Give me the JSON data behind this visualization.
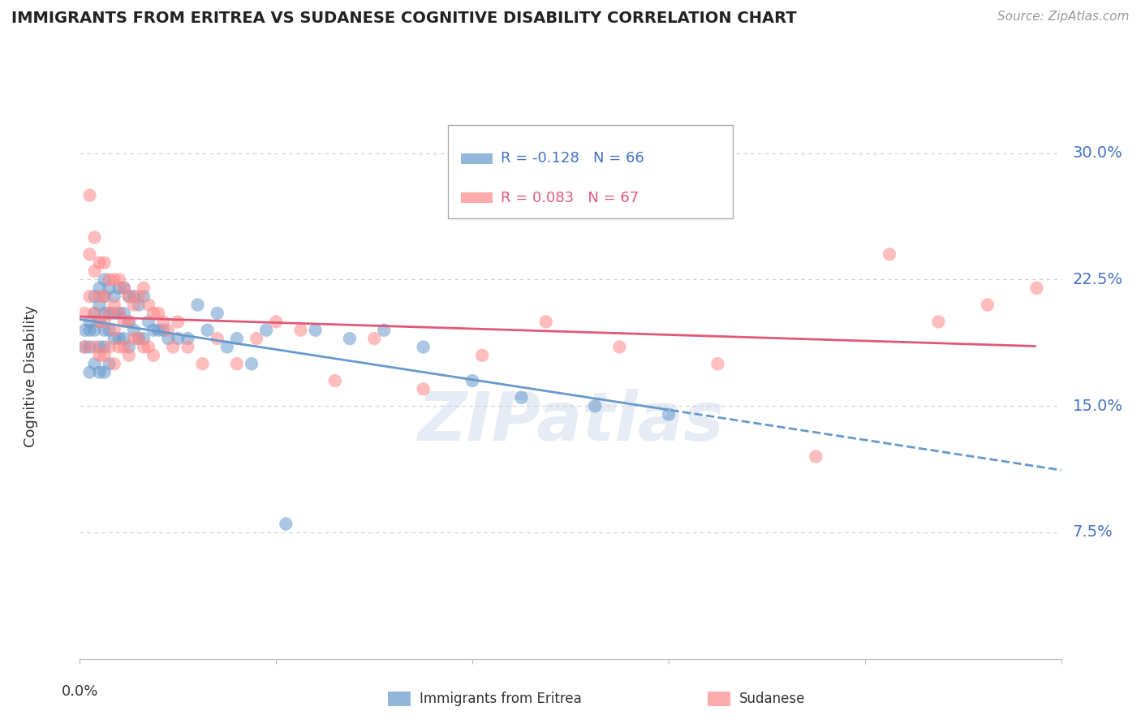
{
  "title": "IMMIGRANTS FROM ERITREA VS SUDANESE COGNITIVE DISABILITY CORRELATION CHART",
  "source": "Source: ZipAtlas.com",
  "ylabel": "Cognitive Disability",
  "y_tick_labels": [
    "7.5%",
    "15.0%",
    "22.5%",
    "30.0%"
  ],
  "y_tick_values": [
    0.075,
    0.15,
    0.225,
    0.3
  ],
  "x_lim": [
    0.0,
    0.2
  ],
  "y_lim": [
    0.0,
    0.335
  ],
  "legend_eritrea_r": "-0.128",
  "legend_eritrea_n": "66",
  "legend_sudanese_r": "0.083",
  "legend_sudanese_n": "67",
  "legend_label_eritrea": "Immigrants from Eritrea",
  "legend_label_sudanese": "Sudanese",
  "color_eritrea": "#6699cc",
  "color_sudanese": "#ff8888",
  "color_text_blue": "#4472c4",
  "color_text_pink": "#e05878",
  "background_color": "#ffffff",
  "grid_color": "#cccccc",
  "eritrea_x": [
    0.001,
    0.001,
    0.002,
    0.002,
    0.002,
    0.002,
    0.003,
    0.003,
    0.003,
    0.003,
    0.004,
    0.004,
    0.004,
    0.004,
    0.004,
    0.005,
    0.005,
    0.005,
    0.005,
    0.005,
    0.005,
    0.006,
    0.006,
    0.006,
    0.006,
    0.007,
    0.007,
    0.007,
    0.008,
    0.008,
    0.008,
    0.009,
    0.009,
    0.009,
    0.01,
    0.01,
    0.01,
    0.011,
    0.011,
    0.012,
    0.012,
    0.013,
    0.013,
    0.014,
    0.015,
    0.016,
    0.017,
    0.018,
    0.02,
    0.022,
    0.024,
    0.026,
    0.028,
    0.03,
    0.032,
    0.035,
    0.038,
    0.042,
    0.048,
    0.055,
    0.062,
    0.07,
    0.08,
    0.09,
    0.105,
    0.12
  ],
  "eritrea_y": [
    0.195,
    0.185,
    0.2,
    0.195,
    0.185,
    0.17,
    0.215,
    0.205,
    0.195,
    0.175,
    0.22,
    0.21,
    0.2,
    0.185,
    0.17,
    0.225,
    0.215,
    0.205,
    0.195,
    0.185,
    0.17,
    0.22,
    0.205,
    0.195,
    0.175,
    0.215,
    0.205,
    0.19,
    0.22,
    0.205,
    0.19,
    0.22,
    0.205,
    0.19,
    0.215,
    0.2,
    0.185,
    0.215,
    0.195,
    0.21,
    0.19,
    0.215,
    0.19,
    0.2,
    0.195,
    0.195,
    0.195,
    0.19,
    0.19,
    0.19,
    0.21,
    0.195,
    0.205,
    0.185,
    0.19,
    0.175,
    0.195,
    0.08,
    0.195,
    0.19,
    0.195,
    0.185,
    0.165,
    0.155,
    0.15,
    0.145
  ],
  "sudanese_x": [
    0.001,
    0.001,
    0.002,
    0.002,
    0.002,
    0.003,
    0.003,
    0.003,
    0.003,
    0.004,
    0.004,
    0.004,
    0.004,
    0.005,
    0.005,
    0.005,
    0.005,
    0.006,
    0.006,
    0.006,
    0.007,
    0.007,
    0.007,
    0.007,
    0.008,
    0.008,
    0.008,
    0.009,
    0.009,
    0.009,
    0.01,
    0.01,
    0.01,
    0.011,
    0.011,
    0.012,
    0.012,
    0.013,
    0.013,
    0.014,
    0.014,
    0.015,
    0.015,
    0.016,
    0.017,
    0.018,
    0.019,
    0.02,
    0.022,
    0.025,
    0.028,
    0.032,
    0.036,
    0.04,
    0.045,
    0.052,
    0.06,
    0.07,
    0.082,
    0.095,
    0.11,
    0.13,
    0.15,
    0.165,
    0.175,
    0.185,
    0.195
  ],
  "sudanese_y": [
    0.205,
    0.185,
    0.275,
    0.24,
    0.215,
    0.25,
    0.23,
    0.205,
    0.185,
    0.235,
    0.215,
    0.2,
    0.18,
    0.235,
    0.215,
    0.2,
    0.18,
    0.225,
    0.205,
    0.185,
    0.225,
    0.21,
    0.195,
    0.175,
    0.225,
    0.205,
    0.185,
    0.22,
    0.2,
    0.185,
    0.215,
    0.2,
    0.18,
    0.21,
    0.19,
    0.215,
    0.19,
    0.22,
    0.185,
    0.21,
    0.185,
    0.205,
    0.18,
    0.205,
    0.2,
    0.195,
    0.185,
    0.2,
    0.185,
    0.175,
    0.19,
    0.175,
    0.19,
    0.2,
    0.195,
    0.165,
    0.19,
    0.16,
    0.18,
    0.2,
    0.185,
    0.175,
    0.12,
    0.24,
    0.2,
    0.21,
    0.22
  ]
}
